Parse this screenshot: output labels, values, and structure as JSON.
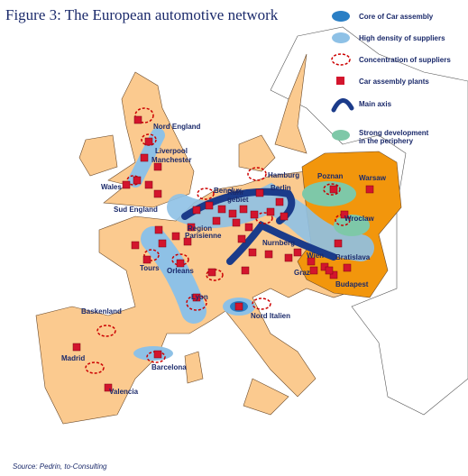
{
  "title": "Figure 3: The European automotive network",
  "legend": [
    "Core of Car assembly",
    "High density of suppliers",
    "Concentration of suppliers",
    "Car assembly plants",
    "Main axis",
    "Strong development",
    "in the periphery"
  ],
  "places": [
    "Nord England",
    "Liverpool",
    "Manchester",
    "Wales",
    "Sud England",
    "Hamburg",
    "Poznan",
    "Warsaw",
    "Benelux",
    "Ruhr",
    "gebiet",
    "Berlin",
    "Wroclaw",
    "Nurnberg",
    "Region",
    "Parisienne",
    "Tours",
    "Orleans",
    "Wien",
    "Bratislava",
    "Graz",
    "Budapest",
    "Lyon",
    "Nord Italien",
    "Baskenland",
    "Madrid",
    "Barcelona",
    "Valencia"
  ],
  "source": "Source: Pedrin, to-Consulting"
}
